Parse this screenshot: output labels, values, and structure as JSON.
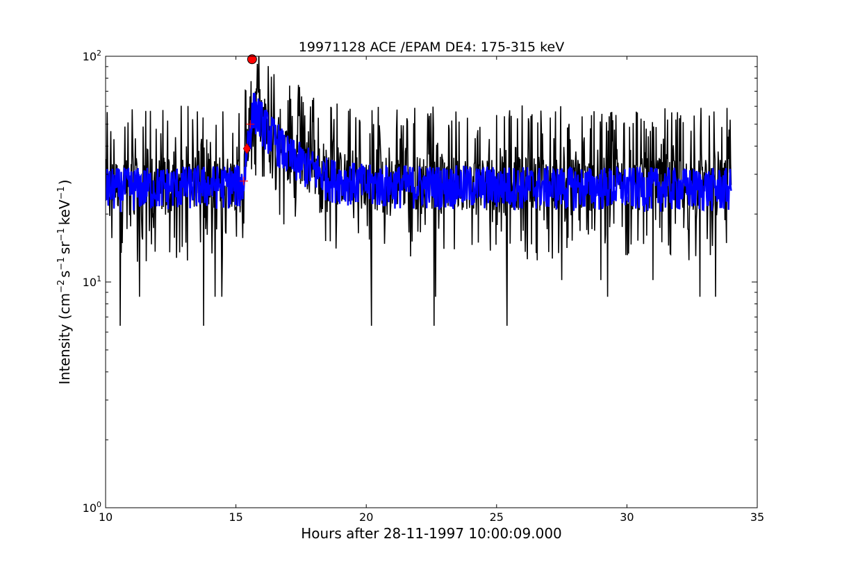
{
  "chart_data": {
    "type": "line",
    "title": "19971128 ACE /EPAM DE4: 175-315 keV",
    "xlabel": "Hours after 28-11-1997 10:00:09.000",
    "ylabel_parts": {
      "prefix": "Intensity (cm",
      "exp1": "−2",
      "s": "s",
      "exp2": "−1",
      "sr": "sr",
      "exp3": "−1",
      "kev": "keV",
      "exp4": "−1",
      "suffix": ")"
    },
    "xlim": [
      10,
      35
    ],
    "ylim": [
      1,
      100
    ],
    "yscale": "log",
    "grid": false,
    "x_ticks": [
      10,
      15,
      20,
      25,
      30,
      35
    ],
    "y_ticks": [
      {
        "value": 1,
        "base": "10",
        "exp": "0"
      },
      {
        "value": 10,
        "base": "10",
        "exp": "1"
      },
      {
        "value": 100,
        "base": "10",
        "exp": "2"
      }
    ],
    "series": [
      {
        "color": "#000000",
        "style": "raw",
        "sample_interval_hours": 0.02,
        "x_range": [
          10.0,
          34.0
        ],
        "baseline": 27,
        "anchors": [
          [
            10.0,
            27
          ],
          [
            15.3,
            28
          ],
          [
            15.45,
            45
          ],
          [
            15.7,
            62
          ],
          [
            16.2,
            48
          ],
          [
            17.0,
            37
          ],
          [
            18.5,
            30
          ],
          [
            20.0,
            28
          ],
          [
            34.0,
            27
          ]
        ],
        "upper_range": [
          35,
          60
        ],
        "lower_outliers": [
          [
            10.55,
            6.4
          ],
          [
            11.3,
            8.6
          ],
          [
            13.75,
            6.4
          ],
          [
            14.2,
            8.6
          ],
          [
            14.45,
            8.6
          ],
          [
            20.2,
            6.4
          ],
          [
            22.6,
            6.4
          ],
          [
            22.65,
            8.6
          ],
          [
            25.4,
            6.4
          ],
          [
            27.5,
            10.2
          ],
          [
            29.0,
            10.2
          ],
          [
            29.25,
            8.6
          ],
          [
            31.0,
            10.2
          ],
          [
            32.8,
            8.6
          ],
          [
            33.4,
            8.6
          ]
        ]
      },
      {
        "color": "#0000ff",
        "style": "smoothed",
        "x_range": [
          10.0,
          34.0
        ],
        "anchors": [
          [
            10.0,
            26
          ],
          [
            15.3,
            27
          ],
          [
            15.45,
            42
          ],
          [
            15.7,
            58
          ],
          [
            16.2,
            47
          ],
          [
            17.0,
            36
          ],
          [
            18.5,
            29
          ],
          [
            20.0,
            27
          ],
          [
            34.0,
            26
          ]
        ],
        "spread": [
          18,
          38
        ]
      }
    ],
    "markers": [
      {
        "shape": "circle",
        "x": 15.62,
        "y": 97,
        "color": "#ff0000"
      },
      {
        "shape": "diamond",
        "x": 15.42,
        "y": 39,
        "color": "#ff0000"
      },
      {
        "shape": "plus",
        "x": 15.55,
        "y": 50,
        "color": "#ff0000"
      },
      {
        "shape": "plus",
        "x": 15.3,
        "y": 28,
        "color": "#ff0000"
      }
    ]
  }
}
